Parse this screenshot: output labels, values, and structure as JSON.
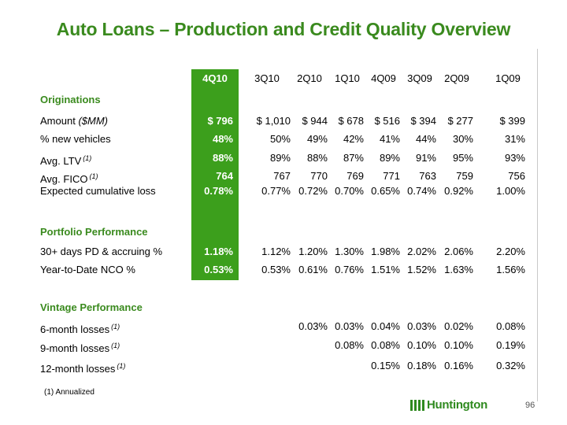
{
  "title": "Auto Loans – Production and Credit Quality Overview",
  "columns": [
    "4Q10",
    "3Q10",
    "2Q10",
    "1Q10",
    "4Q09",
    "3Q09",
    "2Q09",
    "1Q09"
  ],
  "sections": {
    "originations": "Originations",
    "portfolio": "Portfolio Performance",
    "vintage": "Vintage Performance"
  },
  "rows": {
    "amount": {
      "label": "Amount",
      "label_em": "($MM)",
      "values": [
        "$  796",
        "$  1,010",
        "$  944",
        "$  678",
        "$  516",
        "$  394",
        "$  277",
        "$  399"
      ]
    },
    "new_vehicles": {
      "label": "% new vehicles",
      "values": [
        "48%",
        "50%",
        "49%",
        "42%",
        "41%",
        "44%",
        "30%",
        "31%"
      ]
    },
    "ltv": {
      "label": "Avg. LTV",
      "fn": "(1)",
      "values": [
        "88%",
        "89%",
        "88%",
        "87%",
        "89%",
        "91%",
        "95%",
        "93%"
      ]
    },
    "fico": {
      "label": "Avg. FICO",
      "fn": "(1)",
      "values": [
        "764",
        "767",
        "770",
        "769",
        "771",
        "763",
        "759",
        "756"
      ]
    },
    "exp_loss": {
      "label": "Expected cumulative loss",
      "values": [
        "0.78%",
        "0.77%",
        "0.72%",
        "0.70%",
        "0.65%",
        "0.74%",
        "0.92%",
        "1.00%"
      ]
    },
    "pd30": {
      "label": "30+ days PD & accruing %",
      "values": [
        "1.18%",
        "1.12%",
        "1.20%",
        "1.30%",
        "1.98%",
        "2.02%",
        "2.06%",
        "2.20%"
      ]
    },
    "ytd_nco": {
      "label": "Year-to-Date NCO %",
      "values": [
        "0.53%",
        "0.53%",
        "0.61%",
        "0.76%",
        "1.51%",
        "1.52%",
        "1.63%",
        "1.56%"
      ]
    },
    "m6": {
      "label": "6-month losses",
      "fn": "(1)",
      "values": [
        "",
        "",
        "0.03%",
        "0.03%",
        "0.04%",
        "0.03%",
        "0.02%",
        "0.08%"
      ]
    },
    "m9": {
      "label": "9-month losses",
      "fn": "(1)",
      "values": [
        "",
        "",
        "",
        "0.08%",
        "0.08%",
        "0.10%",
        "0.10%",
        "0.19%"
      ]
    },
    "m12": {
      "label": "12-month losses",
      "fn": "(1)",
      "values": [
        "",
        "",
        "",
        "",
        "0.15%",
        "0.18%",
        "0.16%",
        "0.32%"
      ]
    }
  },
  "footnote": "(1)  Annualized",
  "logo": {
    "text": "Huntington",
    "icon": "huntington-logo-mark",
    "color": "#2f8a1f"
  },
  "page_number": "96",
  "colors": {
    "accent": "#3a8a1e",
    "highlight_column": "#3c9f1c"
  }
}
